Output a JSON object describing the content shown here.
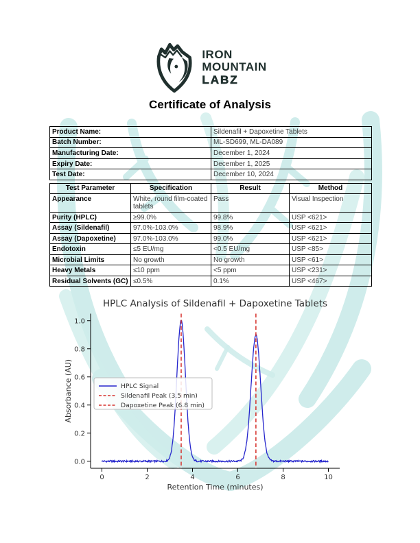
{
  "brand": {
    "name_line1": "IRON",
    "name_line2": "MOUNTAIN",
    "name_line3": "LABZ",
    "logo_color": "#20302e",
    "watermark_color": "#a8dedb"
  },
  "title": "Certificate of Analysis",
  "product_info": {
    "rows": [
      {
        "label": "Product Name:",
        "value": "Sildenafil + Dapoxetine Tablets"
      },
      {
        "label": "Batch Number:",
        "value": "ML-SD699, ML-DA089"
      },
      {
        "label": "Manufacturing Date:",
        "value": "December 1, 2024"
      },
      {
        "label": "Expiry Date:",
        "value": "December 1, 2025"
      },
      {
        "label": "Test Date:",
        "value": "December 10, 2024"
      }
    ]
  },
  "results_table": {
    "headers": [
      "Test Parameter",
      "Specification",
      "Result",
      "Method"
    ],
    "rows": [
      [
        "Appearance",
        "White, round film-coated tablets",
        "Pass",
        "Visual Inspection"
      ],
      [
        "Purity (HPLC)",
        "≥99.0%",
        "99.8%",
        "USP <621>"
      ],
      [
        "Assay (Sildenafil)",
        "97.0%-103.0%",
        "98.9%",
        "USP <621>"
      ],
      [
        "Assay (Dapoxetine)",
        "97.0%-103.0%",
        "99.0%",
        "USP <621>"
      ],
      [
        "Endotoxin",
        "≤5 EU/mg",
        "<0.5 EU/mg",
        "USP <85>"
      ],
      [
        "Microbial Limits",
        "No growth",
        "No growth",
        "USP <61>"
      ],
      [
        "Heavy Metals",
        "≤10 ppm",
        "<5 ppm",
        "USP <231>"
      ],
      [
        "Residual Solvents (GC)",
        "≤0.5%",
        "0.1%",
        "USP <467>"
      ]
    ]
  },
  "chart_data": {
    "type": "line",
    "title": "HPLC Analysis of Sildenafil + Dapoxetine Tablets",
    "xlabel": "Retention Time (minutes)",
    "ylabel": "Absorbance (AU)",
    "xlim": [
      -0.5,
      10.5
    ],
    "ylim": [
      -0.05,
      1.05
    ],
    "xticks": [
      0,
      2,
      4,
      6,
      8,
      10
    ],
    "yticks": [
      "0.0",
      "0.2",
      "0.4",
      "0.6",
      "0.8",
      "1.0"
    ],
    "grid": false,
    "legend_position": "center-left",
    "series": [
      {
        "name": "HPLC Signal",
        "color": "#2424cc",
        "style": "solid",
        "baseline": 0.0,
        "noise_amplitude": 0.006,
        "peaks": [
          {
            "center": 3.5,
            "height": 1.0,
            "sigma": 0.19
          },
          {
            "center": 6.8,
            "height": 0.9,
            "sigma": 0.21
          }
        ]
      }
    ],
    "markers": [
      {
        "name": "Sildenafil Peak (3.5 min)",
        "x": 3.5,
        "color": "#d62f2a",
        "style": "dashed"
      },
      {
        "name": "Dapoxetine Peak (6.8 min)",
        "x": 6.8,
        "color": "#d62f2a",
        "style": "dashed"
      }
    ],
    "legend_entries": [
      "HPLC Signal",
      "Sildenafil Peak (3.5 min)",
      "Dapoxetine Peak (6.8 min)"
    ],
    "text_color": "#333333"
  }
}
